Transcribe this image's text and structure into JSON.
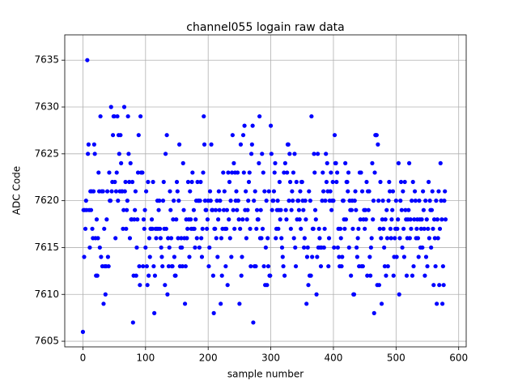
{
  "chart_data": {
    "type": "scatter",
    "title": "channel055 logain raw data",
    "xlabel": "sample number",
    "ylabel": "ADC Code",
    "color": "#0000ff",
    "grid": true,
    "xlim": [
      -29,
      612
    ],
    "ylim": [
      7604.4,
      7637.7
    ],
    "xticks": [
      0,
      100,
      200,
      300,
      400,
      500,
      600
    ],
    "yticks": [
      7605,
      7610,
      7615,
      7620,
      7625,
      7630,
      7635
    ],
    "x": [
      0,
      1,
      2,
      3,
      4,
      5,
      6,
      7,
      8,
      9,
      10,
      11,
      12,
      13,
      14,
      15,
      16,
      17,
      18,
      19,
      20,
      21,
      22,
      23,
      24,
      25,
      26,
      27,
      28,
      29,
      30,
      31,
      32,
      33,
      34,
      35,
      36,
      37,
      38,
      39,
      40,
      41,
      42,
      43,
      44,
      45,
      46,
      47,
      48,
      49,
      50,
      51,
      52,
      53,
      54,
      55,
      56,
      57,
      58,
      59,
      60,
      61,
      62,
      63,
      64,
      65,
      66,
      67,
      68,
      69,
      70,
      71,
      72,
      73,
      74,
      75,
      76,
      77,
      78,
      79,
      80,
      81,
      82,
      83,
      84,
      85,
      86,
      87,
      88,
      89,
      90,
      91,
      92,
      93,
      94,
      95,
      96,
      97,
      98,
      99,
      100,
      101,
      102,
      103,
      104,
      105,
      106,
      107,
      108,
      109,
      110,
      111,
      112,
      113,
      114,
      115,
      116,
      117,
      118,
      119,
      120,
      121,
      122,
      123,
      124,
      125,
      126,
      127,
      128,
      129,
      130,
      131,
      132,
      133,
      134,
      135,
      136,
      137,
      138,
      139,
      140,
      141,
      142,
      143,
      144,
      145,
      146,
      147,
      148,
      149,
      150,
      151,
      152,
      153,
      154,
      155,
      156,
      157,
      158,
      159,
      160,
      161,
      162,
      163,
      164,
      165,
      166,
      167,
      168,
      169,
      170,
      171,
      172,
      173,
      174,
      175,
      176,
      177,
      178,
      179,
      180,
      181,
      182,
      183,
      184,
      185,
      186,
      187,
      188,
      189,
      190,
      191,
      192,
      193,
      194,
      195,
      196,
      197,
      198,
      199,
      200,
      201,
      202,
      203,
      204,
      205,
      206,
      207,
      208,
      209,
      210,
      211,
      212,
      213,
      214,
      215,
      216,
      217,
      218,
      219,
      220,
      221,
      222,
      223,
      224,
      225,
      226,
      227,
      228,
      229,
      230,
      231,
      232,
      233,
      234,
      235,
      236,
      237,
      238,
      239,
      240,
      241,
      242,
      243,
      244,
      245,
      246,
      247,
      248,
      249,
      250,
      251,
      252,
      253,
      254,
      255,
      256,
      257,
      258,
      259,
      260,
      261,
      262,
      263,
      264,
      265,
      266,
      267,
      268,
      269,
      270,
      271,
      272,
      273,
      274,
      275,
      276,
      277,
      278,
      279,
      280,
      281,
      282,
      283,
      284,
      285,
      286,
      287,
      288,
      289,
      290,
      291,
      292,
      293,
      294,
      295,
      296,
      297,
      298,
      299,
      300,
      301,
      302,
      303,
      304,
      305,
      306,
      307,
      308,
      309,
      310,
      311,
      312,
      313,
      314,
      315,
      316,
      317,
      318,
      319,
      320,
      321,
      322,
      323,
      324,
      325,
      326,
      327,
      328,
      329,
      330,
      331,
      332,
      333,
      334,
      335,
      336,
      337,
      338,
      339,
      340,
      341,
      342,
      343,
      344,
      345,
      346,
      347,
      348,
      349,
      350,
      351,
      352,
      353,
      354,
      355,
      356,
      357,
      358,
      359,
      360,
      361,
      362,
      363,
      364,
      365,
      366,
      367,
      368,
      369,
      370,
      371,
      372,
      373,
      374,
      375,
      376,
      377,
      378,
      379,
      380,
      381,
      382,
      383,
      384,
      385,
      386,
      387,
      388,
      389,
      390,
      391,
      392,
      393,
      394,
      395,
      396,
      397,
      398,
      399,
      400,
      401,
      402,
      403,
      404,
      405,
      406,
      407,
      408,
      409,
      410,
      411,
      412,
      413,
      414,
      415,
      416,
      417,
      418,
      419,
      420,
      421,
      422,
      423,
      424,
      425,
      426,
      427,
      428,
      429,
      430,
      431,
      432,
      433,
      434,
      435,
      436,
      437,
      438,
      439,
      440,
      441,
      442,
      443,
      444,
      445,
      446,
      447,
      448,
      449,
      450,
      451,
      452,
      453,
      454,
      455,
      456,
      457,
      458,
      459,
      460,
      461,
      462,
      463,
      464,
      465,
      466,
      467,
      468,
      469,
      470,
      471,
      472,
      473,
      474,
      475,
      476,
      477,
      478,
      479,
      480,
      481,
      482,
      483,
      484,
      485,
      486,
      487,
      488,
      489,
      490,
      491,
      492,
      493,
      494,
      495,
      496,
      497,
      498,
      499,
      500,
      501,
      502,
      503,
      504,
      505,
      506,
      507,
      508,
      509,
      510,
      511,
      512,
      513,
      514,
      515,
      516,
      517,
      518,
      519,
      520,
      521,
      522,
      523,
      524,
      525,
      526,
      527,
      528,
      529,
      530,
      531,
      532,
      533,
      534,
      535,
      536,
      537,
      538,
      539,
      540,
      541,
      542,
      543,
      544,
      545,
      546,
      547,
      548,
      549,
      550,
      551,
      552,
      553,
      554,
      555,
      556,
      557,
      558,
      559,
      560,
      561,
      562,
      563,
      564,
      565,
      566,
      567,
      568,
      569,
      570,
      571,
      572,
      573,
      574,
      575,
      576,
      577,
      578,
      579
    ],
    "values": [
      7606,
      7619,
      7614,
      7619,
      7617,
      7620,
      7619,
      7635,
      7625,
      7626,
      7619,
      7615,
      7621,
      7619,
      7621,
      7617,
      7616,
      7621,
      7626,
      7625,
      7616,
      7612,
      7618,
      7612,
      7616,
      7623,
      7621,
      7615,
      7629,
      7614,
      7621,
      7613,
      7621,
      7609,
      7617,
      7613,
      7610,
      7613,
      7618,
      7621,
      7614,
      7613,
      7623,
      7620,
      7620,
      7630,
      7621,
      7622,
      7627,
      7629,
      7629,
      7622,
      7616,
      7621,
      7623,
      7629,
      7620,
      7627,
      7625,
      7621,
      7627,
      7624,
      7621,
      7621,
      7617,
      7619,
      7630,
      7621,
      7622,
      7617,
      7619,
      7620,
      7629,
      7625,
      7622,
      7616,
      7624,
      7618,
      7618,
      7622,
      7607,
      7612,
      7618,
      7619,
      7621,
      7612,
      7615,
      7618,
      7623,
      7627,
      7613,
      7611,
      7629,
      7623,
      7623,
      7623,
      7613,
      7618,
      7617,
      7619,
      7615,
      7621,
      7613,
      7611,
      7622,
      7612,
      7616,
      7614,
      7617,
      7617,
      7618,
      7617,
      7622,
      7613,
      7608,
      7612,
      7617,
      7616,
      7617,
      7620,
      7617,
      7619,
      7620,
      7617,
      7616,
      7615,
      7614,
      7613,
      7620,
      7622,
      7617,
      7611,
      7625,
      7617,
      7627,
      7610,
      7616,
      7613,
      7615,
      7621,
      7619,
      7616,
      7613,
      7613,
      7618,
      7620,
      7614,
      7612,
      7612,
      7618,
      7622,
      7621,
      7616,
      7620,
      7626,
      7613,
      7615,
      7616,
      7615,
      7613,
      7624,
      7619,
      7616,
      7609,
      7613,
      7618,
      7616,
      7617,
      7622,
      7618,
      7614,
      7621,
      7618,
      7617,
      7622,
      7623,
      7617,
      7619,
      7617,
      7615,
      7618,
      7620,
      7616,
      7622,
      7620,
      7620,
      7615,
      7620,
      7622,
      7616,
      7614,
      7617,
      7623,
      7629,
      7626,
      7620,
      7619,
      7619,
      7617,
      7618,
      7620,
      7613,
      7615,
      7621,
      7620,
      7626,
      7619,
      7619,
      7612,
      7608,
      7617,
      7617,
      7619,
      7616,
      7620,
      7614,
      7618,
      7621,
      7619,
      7620,
      7609,
      7616,
      7612,
      7617,
      7623,
      7619,
      7621,
      7617,
      7613,
      7617,
      7619,
      7611,
      7623,
      7618,
      7622,
      7616,
      7620,
      7614,
      7623,
      7627,
      7619,
      7624,
      7617,
      7623,
      7620,
      7621,
      7619,
      7623,
      7620,
      7618,
      7609,
      7617,
      7626,
      7612,
      7614,
      7618,
      7627,
      7623,
      7628,
      7619,
      7621,
      7616,
      7618,
      7619,
      7620,
      7622,
      7623,
      7617,
      7613,
      7625,
      7626,
      7628,
      7607,
      7620,
      7613,
      7621,
      7613,
      7617,
      7619,
      7618,
      7618,
      7624,
      7629,
      7616,
      7619,
      7616,
      7625,
      7617,
      7623,
      7613,
      7621,
      7611,
      7615,
      7620,
      7611,
      7616,
      7613,
      7621,
      7612,
      7612,
      7628,
      7625,
      7619,
      7620,
      7620,
      7621,
      7623,
      7624,
      7616,
      7617,
      7619,
      7620,
      7617,
      7619,
      7622,
      7618,
      7619,
      7616,
      7615,
      7614,
      7613,
      7623,
      7612,
      7624,
      7619,
      7618,
      7623,
      7626,
      7626,
      7620,
      7625,
      7622,
      7617,
      7619,
      7621,
      7620,
      7623,
      7616,
      7625,
      7615,
      7613,
      7622,
      7618,
      7620,
      7620,
      7619,
      7618,
      7621,
      7617,
      7622,
      7622,
      7620,
      7619,
      7615,
      7616,
      7620,
      7618,
      7609,
      7614,
      7615,
      7611,
      7621,
      7612,
      7620,
      7612,
      7629,
      7614,
      7617,
      7617,
      7625,
      7623,
      7619,
      7618,
      7610,
      7614,
      7625,
      7615,
      7617,
      7616,
      7615,
      7613,
      7615,
      7620,
      7623,
      7621,
      7615,
      7617,
      7620,
      7625,
      7622,
      7624,
      7621,
      7613,
      7616,
      7620,
      7621,
      7623,
      7619,
      7620,
      7622,
      7620,
      7615,
      7627,
      7624,
      7624,
      7622,
      7623,
      7615,
      7617,
      7614,
      7613,
      7617,
      7616,
      7613,
      7614,
      7620,
      7620,
      7618,
      7617,
      7624,
      7618,
      7622,
      7622,
      7621,
      7623,
      7615,
      7620,
      7619,
      7612,
      7619,
      7620,
      7617,
      7610,
      7610,
      7620,
      7621,
      7619,
      7615,
      7614,
      7616,
      7617,
      7613,
      7623,
      7618,
      7623,
      7613,
      7621,
      7613,
      7618,
      7619,
      7617,
      7619,
      7618,
      7622,
      7612,
      7621,
      7619,
      7621,
      7614,
      7612,
      7615,
      7616,
      7624,
      7618,
      7620,
      7608,
      7623,
      7627,
      7627,
      7627,
      7611,
      7626,
      7620,
      7611,
      7617,
      7622,
      7616,
      7609,
      7618,
      7620,
      7617,
      7615,
      7613,
      7618,
      7612,
      7619,
      7616,
      7613,
      7620,
      7622,
      7621,
      7617,
      7616,
      7618,
      7619,
      7621,
      7612,
      7614,
      7616,
      7617,
      7620,
      7614,
      7617,
      7618,
      7624,
      7610,
      7616,
      7620,
      7622,
      7619,
      7615,
      7621,
      7617,
      7614,
      7622,
      7619,
      7618,
      7612,
      7616,
      7618,
      7619,
      7624,
      7616,
      7618,
      7617,
      7620,
      7612,
      7622,
      7613,
      7618,
      7621,
      7620,
      7616,
      7617,
      7618,
      7616,
      7614,
      7620,
      7618,
      7615,
      7617,
      7618,
      7615,
      7621,
      7619,
      7617,
      7612,
      7620,
      7614,
      7618,
      7613,
      7617,
      7622,
      7616,
      7620,
      7619,
      7615,
      7619,
      7621,
      7617,
      7611,
      7618,
      7616,
      7613,
      7620,
      7609,
      7618,
      7616,
      7621,
      7611,
      7617,
      7624,
      7620,
      7618,
      7609,
      7613,
      7611,
      7620,
      7621,
      7618
    ]
  }
}
